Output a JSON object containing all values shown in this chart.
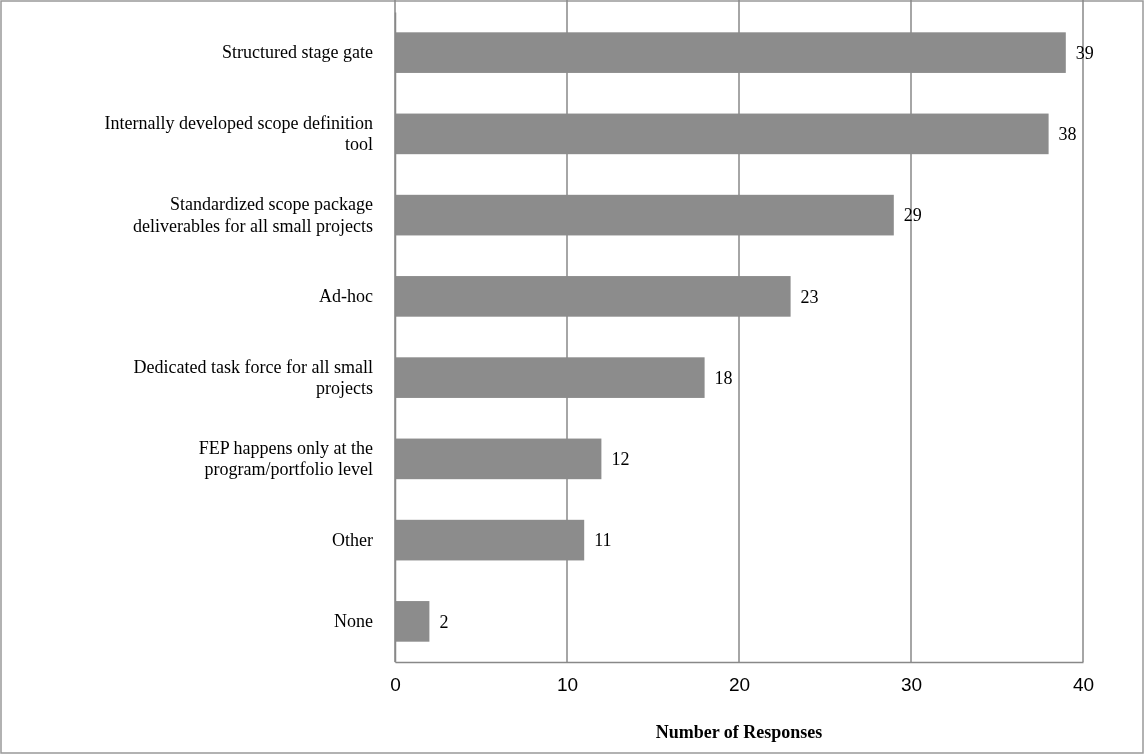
{
  "chart_data": {
    "type": "bar",
    "orientation": "horizontal",
    "xlabel": "Number of Responses",
    "categories": [
      "Structured stage gate",
      "Internally developed scope definition tool",
      "Standardized scope package deliverables for all small projects",
      "Ad-hoc",
      "Dedicated task force for all small projects",
      "FEP happens only at the program/portfolio level",
      "Other",
      "None"
    ],
    "values": [
      39,
      38,
      29,
      23,
      18,
      12,
      11,
      2
    ],
    "color": "#8c8c8c",
    "xlim": [
      0,
      40
    ],
    "xticks": [
      0,
      10,
      20,
      30,
      40
    ],
    "grid": "x",
    "data_labels": true
  }
}
